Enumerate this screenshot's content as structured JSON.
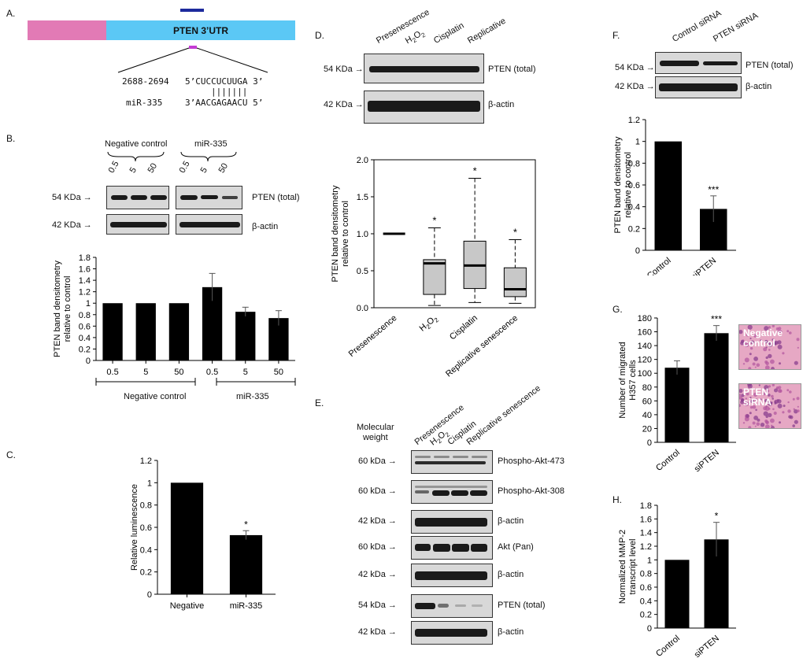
{
  "panels": {
    "A": {
      "label": "A.",
      "utr_label": "PTEN 3’UTR",
      "site_pos": "2688-2694",
      "site_seq": "5’CUCCUCUUGA 3’",
      "pairs": "|||||||",
      "mir_name": "miR-335",
      "mir_seq": "3’AACGAGAACU 5’",
      "colors": {
        "pink": "#e27ab5",
        "blue": "#5bc8f5",
        "navy": "#1d2a9c",
        "magenta": "#c43bd4"
      }
    },
    "B": {
      "label": "B.",
      "group1": "Negative control",
      "group2": "miR-335",
      "doses": [
        "0.5",
        "5",
        "50"
      ],
      "blot_rows": [
        {
          "kda": "54 KDa",
          "name": "PTEN (total)"
        },
        {
          "kda": "42 KDa",
          "name": "β-actin"
        }
      ],
      "x_groups": [
        "Negative control",
        "miR-335"
      ]
    },
    "C": {
      "label": "C."
    },
    "D": {
      "label": "D.",
      "lanes": [
        "Presenescence",
        "H2O2",
        "Cisplatin",
        "Replicative"
      ],
      "blot_rows": [
        {
          "kda": "54 KDa",
          "name": "PTEN (total)"
        },
        {
          "kda": "42 KDa",
          "name": "β-actin"
        }
      ]
    },
    "E": {
      "label": "E.",
      "mw_title": "Molecular\nweight",
      "lanes": [
        "Presenescence",
        "H2O2",
        "Cisplatin",
        "Replicative senescence"
      ],
      "rows": [
        {
          "kda": "60 kDa",
          "name": "Phospho-Akt-473"
        },
        {
          "kda": "60 kDa",
          "name": "Phospho-Akt-308"
        },
        {
          "kda": "42 kDa",
          "name": "β-actin"
        },
        {
          "kda": "60 kDa",
          "name": "Akt (Pan)"
        },
        {
          "kda": "42 kDa",
          "name": "β-actin"
        },
        {
          "kda": "54 kDa",
          "name": "PTEN (total)"
        },
        {
          "kda": "42 kDa",
          "name": "β-actin"
        }
      ]
    },
    "F": {
      "label": "F.",
      "lanes": [
        "Control siRNA",
        "PTEN siRNA"
      ],
      "blot_rows": [
        {
          "kda": "54 KDa",
          "name": "PTEN (total)"
        },
        {
          "kda": "42 KDa",
          "name": "β-actin"
        }
      ]
    },
    "G": {
      "label": "G.",
      "img1": "Negative control",
      "img2": "PTEN siRNA"
    },
    "H": {
      "label": "H."
    }
  },
  "chart_data": [
    {
      "id": "B",
      "type": "bar",
      "categories": [
        "0.5",
        "5",
        "50",
        "0.5",
        "5",
        "50"
      ],
      "values": [
        1.0,
        1.0,
        1.0,
        1.28,
        0.85,
        0.74
      ],
      "errors": [
        0,
        0,
        0,
        0.24,
        0.08,
        0.13
      ],
      "ylabel": "PTEN band densitometry relative to control",
      "ylim": [
        0,
        1.8
      ],
      "yticks": [
        "0",
        "0.2",
        "0.4",
        "0.6",
        "0.8",
        "1",
        "1.2",
        "1.4",
        "1.6",
        "1.8"
      ],
      "stars": [
        "",
        "",
        "",
        "",
        "",
        ""
      ]
    },
    {
      "id": "C",
      "type": "bar",
      "categories": [
        "Negative",
        "miR-335"
      ],
      "values": [
        1.0,
        0.53
      ],
      "errors": [
        0,
        0.04
      ],
      "ylabel": "Relative luminescence",
      "ylim": [
        0,
        1.2
      ],
      "yticks": [
        "0",
        "0.2",
        "0.4",
        "0.6",
        "0.8",
        "1",
        "1.2"
      ],
      "stars": [
        "",
        "*"
      ]
    },
    {
      "id": "D",
      "type": "box",
      "categories": [
        "Presenescence",
        "H2O2",
        "Cisplatin",
        "Replicative senescence"
      ],
      "boxes": [
        {
          "min": 1.0,
          "q1": 1.0,
          "med": 1.0,
          "q3": 1.0,
          "max": 1.0
        },
        {
          "min": 0.03,
          "q1": 0.18,
          "med": 0.6,
          "q3": 0.65,
          "max": 1.08
        },
        {
          "min": 0.07,
          "q1": 0.26,
          "med": 0.57,
          "q3": 0.9,
          "max": 1.75
        },
        {
          "min": 0.06,
          "q1": 0.15,
          "med": 0.25,
          "q3": 0.54,
          "max": 0.92
        }
      ],
      "ylabel": "PTEN band densitometry relative to control",
      "ylim": [
        0,
        2.0
      ],
      "yticks": [
        "0.0",
        "0.5",
        "1.0",
        "1.5",
        "2.0"
      ],
      "stars": [
        "",
        "*",
        "*",
        "*"
      ]
    },
    {
      "id": "F",
      "type": "bar",
      "categories": [
        "Control",
        "siPTEN"
      ],
      "values": [
        1.0,
        0.38
      ],
      "errors": [
        0,
        0.12
      ],
      "ylabel": "PTEN band densitometry relative to control",
      "ylim": [
        0,
        1.2
      ],
      "yticks": [
        "0",
        "0.2",
        "0.4",
        "0.6",
        "0.8",
        "1",
        "1.2"
      ],
      "stars": [
        "",
        "***"
      ]
    },
    {
      "id": "G",
      "type": "bar",
      "categories": [
        "Control",
        "siPTEN"
      ],
      "values": [
        108,
        158
      ],
      "errors": [
        10,
        11
      ],
      "ylabel": "Number of migrated H357 cells",
      "ylim": [
        0,
        180
      ],
      "yticks": [
        "0",
        "20",
        "40",
        "60",
        "80",
        "100",
        "120",
        "140",
        "160",
        "180"
      ],
      "stars": [
        "",
        "***"
      ]
    },
    {
      "id": "H",
      "type": "bar",
      "categories": [
        "Control",
        "siPTEN"
      ],
      "values": [
        1.0,
        1.3
      ],
      "errors": [
        0,
        0.25
      ],
      "ylabel": "Normalized MMP-2 transcript level",
      "ylim": [
        0,
        1.8
      ],
      "yticks": [
        "0",
        "0.2",
        "0.4",
        "0.6",
        "0.8",
        "1",
        "1.2",
        "1.4",
        "1.6",
        "1.8"
      ],
      "stars": [
        "",
        "*"
      ]
    }
  ]
}
